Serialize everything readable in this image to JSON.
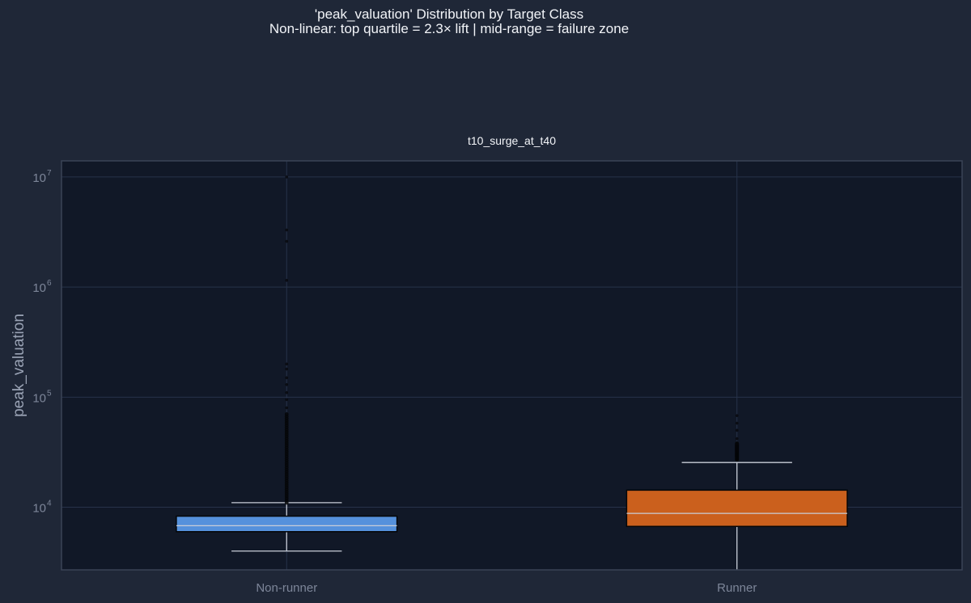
{
  "figure": {
    "title": "'peak_valuation' Distribution by Target Class",
    "subtitle": "Non-linear: top quartile = 2.3× lift | mid-range = failure zone"
  },
  "colors": {
    "figure_bg": "#1f2737",
    "plot_bg": "#111827",
    "grid": "#27324a",
    "axis_text": "#7d8699",
    "ylabel_text": "#9aa3b5",
    "title_text": "#f2f4f8",
    "median_line": "#c9ced8",
    "whisker": "#c9ced8",
    "outlier": "#050608"
  },
  "chart_data": {
    "type": "boxplot",
    "panel_title": "t10_surge_at_t40",
    "ylabel": "peak_valuation",
    "yscale": "log",
    "ylim": [
      2700,
      14000000
    ],
    "yticks": [
      10000,
      100000,
      1000000,
      10000000
    ],
    "ytick_labels": [
      {
        "base": "10",
        "exp": "4"
      },
      {
        "base": "10",
        "exp": "5"
      },
      {
        "base": "10",
        "exp": "6"
      },
      {
        "base": "10",
        "exp": "7"
      }
    ],
    "grid": true,
    "categories": [
      "Non-runner",
      "Runner"
    ],
    "boxes": [
      {
        "label": "Non-runner",
        "color": "#5591dc",
        "whisker_low": 4000,
        "q1": 6000,
        "median": 6800,
        "q3": 8300,
        "whisker_high": 11000,
        "outliers_dense_range": [
          11000,
          70000
        ],
        "outliers": [
          80000,
          95000,
          110000,
          130000,
          150000,
          180000,
          200000,
          1150000,
          2600000,
          3300000,
          10000000
        ]
      },
      {
        "label": "Runner",
        "color": "#cb601d",
        "whisker_low": 2700,
        "q1": 6700,
        "median": 8800,
        "q3": 14300,
        "whisker_high": 25500,
        "outliers_dense_range": [
          27000,
          38000
        ],
        "outliers": [
          42000,
          50000,
          58000,
          68000
        ]
      }
    ]
  }
}
